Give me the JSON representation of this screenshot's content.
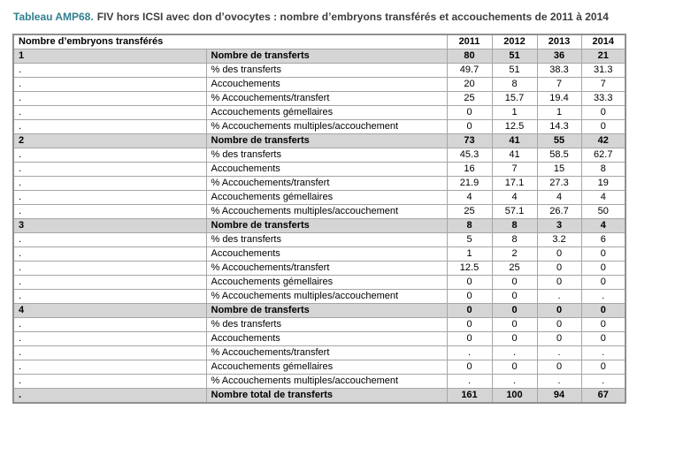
{
  "title": {
    "prefix": "Tableau AMP68.",
    "text": "FIV hors ICSI avec don d’ovocytes : nombre d’embryons transférés et accouchements de 2011 à 2014"
  },
  "table": {
    "header": {
      "col1": "Nombre d’embryons transférés",
      "years": [
        "2011",
        "2012",
        "2013",
        "2014"
      ]
    },
    "rows": [
      {
        "type": "group",
        "group": "1",
        "label": "Nombre de transferts",
        "values": [
          "80",
          "51",
          "36",
          "21"
        ]
      },
      {
        "type": "data",
        "group": ".",
        "label": "% des transferts",
        "values": [
          "49.7",
          "51",
          "38.3",
          "31.3"
        ]
      },
      {
        "type": "data",
        "group": ".",
        "label": "Accouchements",
        "values": [
          "20",
          "8",
          "7",
          "7"
        ]
      },
      {
        "type": "data",
        "group": ".",
        "label": "% Accouchements/transfert",
        "values": [
          "25",
          "15.7",
          "19.4",
          "33.3"
        ]
      },
      {
        "type": "data",
        "group": ".",
        "label": "Accouchements gémellaires",
        "values": [
          "0",
          "1",
          "1",
          "0"
        ]
      },
      {
        "type": "data",
        "group": ".",
        "label": "% Accouchements multiples/accouchement",
        "values": [
          "0",
          "12.5",
          "14.3",
          "0"
        ]
      },
      {
        "type": "group",
        "group": "2",
        "label": "Nombre de transferts",
        "values": [
          "73",
          "41",
          "55",
          "42"
        ]
      },
      {
        "type": "data",
        "group": ".",
        "label": "% des transferts",
        "values": [
          "45.3",
          "41",
          "58.5",
          "62.7"
        ]
      },
      {
        "type": "data",
        "group": ".",
        "label": "Accouchements",
        "values": [
          "16",
          "7",
          "15",
          "8"
        ]
      },
      {
        "type": "data",
        "group": ".",
        "label": "% Accouchements/transfert",
        "values": [
          "21.9",
          "17.1",
          "27.3",
          "19"
        ]
      },
      {
        "type": "data",
        "group": ".",
        "label": "Accouchements gémellaires",
        "values": [
          "4",
          "4",
          "4",
          "4"
        ]
      },
      {
        "type": "data",
        "group": ".",
        "label": "% Accouchements multiples/accouchement",
        "values": [
          "25",
          "57.1",
          "26.7",
          "50"
        ]
      },
      {
        "type": "group",
        "group": "3",
        "label": "Nombre de transferts",
        "values": [
          "8",
          "8",
          "3",
          "4"
        ]
      },
      {
        "type": "data",
        "group": ".",
        "label": "% des transferts",
        "values": [
          "5",
          "8",
          "3.2",
          "6"
        ]
      },
      {
        "type": "data",
        "group": ".",
        "label": "Accouchements",
        "values": [
          "1",
          "2",
          "0",
          "0"
        ]
      },
      {
        "type": "data",
        "group": ".",
        "label": "% Accouchements/transfert",
        "values": [
          "12.5",
          "25",
          "0",
          "0"
        ]
      },
      {
        "type": "data",
        "group": ".",
        "label": "Accouchements gémellaires",
        "values": [
          "0",
          "0",
          "0",
          "0"
        ]
      },
      {
        "type": "data",
        "group": ".",
        "label": "% Accouchements multiples/accouchement",
        "values": [
          "0",
          "0",
          ".",
          "."
        ]
      },
      {
        "type": "group",
        "group": "4",
        "label": "Nombre de transferts",
        "values": [
          "0",
          "0",
          "0",
          "0"
        ]
      },
      {
        "type": "data",
        "group": ".",
        "label": "% des transferts",
        "values": [
          "0",
          "0",
          "0",
          "0"
        ]
      },
      {
        "type": "data",
        "group": ".",
        "label": "Accouchements",
        "values": [
          "0",
          "0",
          "0",
          "0"
        ]
      },
      {
        "type": "data",
        "group": ".",
        "label": "% Accouchements/transfert",
        "values": [
          ".",
          ".",
          ".",
          "."
        ]
      },
      {
        "type": "data",
        "group": ".",
        "label": "Accouchements gémellaires",
        "values": [
          "0",
          "0",
          "0",
          "0"
        ]
      },
      {
        "type": "data",
        "group": ".",
        "label": "% Accouchements multiples/accouchement",
        "values": [
          ".",
          ".",
          ".",
          "."
        ]
      },
      {
        "type": "total",
        "group": ".",
        "label": "Nombre total de transferts",
        "values": [
          "161",
          "100",
          "94",
          "67"
        ]
      }
    ]
  }
}
